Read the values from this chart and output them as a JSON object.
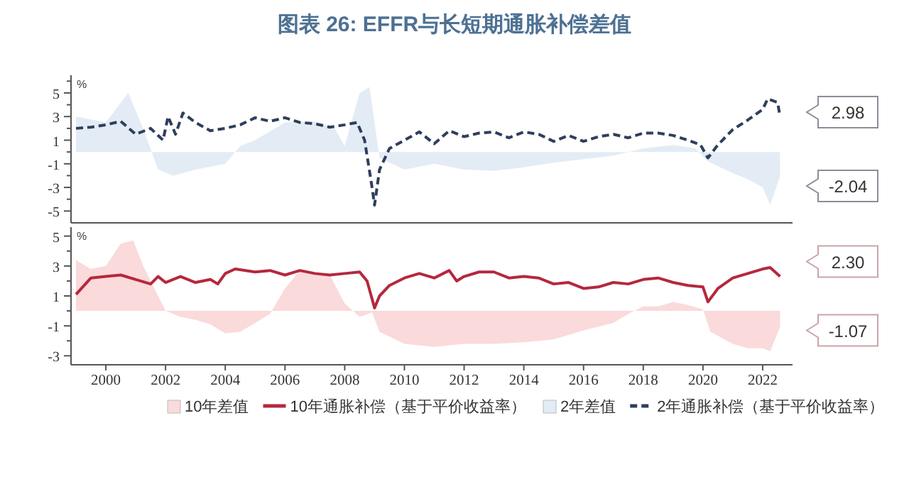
{
  "chart_data": [
    {
      "type": "line",
      "title": "图表 26: EFFR与长短期通胀补偿差值",
      "ylabel": "%",
      "tick_labels": "y",
      "legend": "bottom",
      "grid": false,
      "xlim": [
        "1998-11",
        "2023-01"
      ],
      "ylim": [
        -6,
        6.5
      ],
      "yticks": [
        -5,
        {
          "value": -4,
          "label": null
        },
        -3,
        {
          "value": -2,
          "label": null
        },
        -1,
        {
          "value": 0,
          "label": null
        },
        1,
        {
          "value": 2,
          "label": null
        },
        3,
        {
          "value": 4,
          "label": null
        },
        5,
        {
          "value": 6,
          "label": null
        }
      ],
      "series": [
        {
          "name": "2年差值",
          "type": "area",
          "color": "#e3ecf5",
          "x": [
            "1999-01",
            "2000-01",
            "2000-10",
            "2001-04",
            "2001-10",
            "2002-04",
            "2003-01",
            "2004-01",
            "2004-07",
            "2005-01",
            "2006-01",
            "2007-01",
            "2007-09",
            "2008-01",
            "2008-07",
            "2008-11",
            "2009-03",
            "2010-01",
            "2011-01",
            "2012-01",
            "2013-01",
            "2014-01",
            "2015-01",
            "2016-01",
            "2017-01",
            "2018-01",
            "2019-01",
            "2019-10",
            "2020-03",
            "2021-01",
            "2021-07",
            "2022-01",
            "2022-04",
            "2022-08"
          ],
          "values": [
            3,
            2.5,
            5,
            2,
            -1.5,
            -2,
            -1.5,
            -1,
            0.5,
            1,
            2.5,
            2.6,
            2,
            0.5,
            5,
            5.5,
            -0.5,
            -1.5,
            -1,
            -1.5,
            -1.6,
            -1.3,
            -0.9,
            -0.6,
            -0.3,
            0.3,
            0.6,
            0.3,
            -0.8,
            -1.8,
            -2.3,
            -3,
            -4.5,
            -2.04
          ]
        },
        {
          "name": "2年通胀补偿（基于平价收益率）",
          "line_style": "dashed",
          "color": "#2e3f5c",
          "x": [
            "1999-01",
            "1999-07",
            "2000-01",
            "2000-07",
            "2001-01",
            "2001-07",
            "2001-12",
            "2002-02",
            "2002-05",
            "2002-08",
            "2003-01",
            "2003-07",
            "2004-01",
            "2004-07",
            "2005-01",
            "2005-07",
            "2006-01",
            "2006-07",
            "2007-01",
            "2007-07",
            "2008-01",
            "2008-06",
            "2008-09",
            "2008-12",
            "2009-01",
            "2009-03",
            "2009-07",
            "2010-01",
            "2010-07",
            "2011-01",
            "2011-07",
            "2012-01",
            "2012-07",
            "2013-01",
            "2013-07",
            "2014-01",
            "2014-07",
            "2015-01",
            "2015-07",
            "2016-01",
            "2016-07",
            "2017-01",
            "2017-07",
            "2018-01",
            "2018-07",
            "2019-01",
            "2019-07",
            "2019-12",
            "2020-03",
            "2020-07",
            "2021-01",
            "2021-07",
            "2022-01",
            "2022-03",
            "2022-07",
            "2022-08"
          ],
          "values": [
            2,
            2.1,
            2.3,
            2.6,
            1.5,
            2,
            1,
            3,
            1.5,
            3.3,
            2.5,
            1.8,
            2,
            2.3,
            2.9,
            2.6,
            2.9,
            2.5,
            2.4,
            2.1,
            2.3,
            2.5,
            1,
            -3,
            -4.5,
            -1.5,
            0.3,
            1,
            1.7,
            0.7,
            1.8,
            1.3,
            1.6,
            1.7,
            1.2,
            1.7,
            1.5,
            0.9,
            1.4,
            0.9,
            1.3,
            1.5,
            1.2,
            1.6,
            1.6,
            1.4,
            1,
            0.6,
            -0.5,
            0.6,
            1.9,
            2.7,
            3.6,
            4.5,
            4.2,
            2.98
          ]
        }
      ],
      "annotations": [
        "2.98",
        "-2.04"
      ]
    },
    {
      "type": "line",
      "ylabel": "%",
      "legend": "bottom",
      "grid": false,
      "xlim": [
        "1998-11",
        "2023-01"
      ],
      "xticks": [
        {
          "value": "2000-01",
          "label": "2000"
        },
        {
          "value": "2002-01",
          "label": "2002"
        },
        {
          "value": "2004-01",
          "label": "2004"
        },
        {
          "value": "2006-01",
          "label": "2006"
        },
        {
          "value": "2008-01",
          "label": "2008"
        },
        {
          "value": "2010-01",
          "label": "2010"
        },
        {
          "value": "2012-01",
          "label": "2012"
        },
        {
          "value": "2014-01",
          "label": "2014"
        },
        {
          "value": "2016-01",
          "label": "2016"
        },
        {
          "value": "2018-01",
          "label": "2018"
        },
        {
          "value": "2020-01",
          "label": "2020"
        },
        {
          "value": "2022-01",
          "label": "2022"
        }
      ],
      "ylim": [
        -3.6,
        5.6
      ],
      "yticks": [
        -3,
        {
          "value": -2,
          "label": null
        },
        -1,
        {
          "value": 0,
          "label": null
        },
        1,
        {
          "value": 2,
          "label": null
        },
        3,
        {
          "value": 4,
          "label": null
        },
        5
      ],
      "series": [
        {
          "name": "10年差值",
          "type": "area",
          "color": "#fadadb",
          "x": [
            "1999-01",
            "1999-07",
            "2000-01",
            "2000-07",
            "2000-12",
            "2001-04",
            "2001-10",
            "2002-01",
            "2002-07",
            "2003-01",
            "2003-07",
            "2004-01",
            "2004-07",
            "2005-01",
            "2005-07",
            "2006-01",
            "2006-07",
            "2007-01",
            "2007-07",
            "2008-01",
            "2008-07",
            "2008-12",
            "2009-03",
            "2010-01",
            "2011-01",
            "2012-01",
            "2013-01",
            "2014-01",
            "2015-01",
            "2016-01",
            "2017-01",
            "2017-07",
            "2018-01",
            "2018-07",
            "2019-01",
            "2019-07",
            "2020-01",
            "2020-04",
            "2021-01",
            "2021-07",
            "2022-01",
            "2022-04",
            "2022-08"
          ],
          "values": [
            3.4,
            2.8,
            3,
            4.5,
            4.7,
            3,
            1,
            0,
            -0.4,
            -0.6,
            -0.9,
            -1.5,
            -1.4,
            -0.8,
            -0.2,
            1.5,
            2.7,
            2.6,
            2.4,
            0.5,
            -0.4,
            -0.1,
            -1.4,
            -2.2,
            -2.4,
            -2.2,
            -2.2,
            -2.1,
            -1.9,
            -1.3,
            -0.8,
            -0.2,
            0.3,
            0.3,
            0.6,
            0.4,
            0.1,
            -1.4,
            -2.2,
            -2.5,
            -2.5,
            -2.7,
            -1.07
          ]
        },
        {
          "name": "10年通胀补偿（基于平价收益率）",
          "line_style": "solid",
          "color": "#b5283c",
          "x": [
            "1999-01",
            "1999-07",
            "2000-01",
            "2000-07",
            "2001-01",
            "2001-07",
            "2001-10",
            "2002-01",
            "2002-07",
            "2003-01",
            "2003-07",
            "2003-10",
            "2004-01",
            "2004-05",
            "2005-01",
            "2005-07",
            "2006-01",
            "2006-07",
            "2007-01",
            "2007-07",
            "2008-01",
            "2008-07",
            "2008-10",
            "2009-01",
            "2009-03",
            "2009-07",
            "2010-01",
            "2010-07",
            "2011-01",
            "2011-07",
            "2011-10",
            "2012-01",
            "2012-07",
            "2013-01",
            "2013-07",
            "2014-01",
            "2014-07",
            "2015-01",
            "2015-07",
            "2016-01",
            "2016-07",
            "2017-01",
            "2017-07",
            "2018-01",
            "2018-07",
            "2019-01",
            "2019-07",
            "2020-01",
            "2020-03",
            "2020-07",
            "2021-01",
            "2021-07",
            "2022-01",
            "2022-04",
            "2022-08"
          ],
          "values": [
            1.1,
            2.2,
            2.3,
            2.4,
            2.1,
            1.8,
            2.3,
            1.9,
            2.3,
            1.9,
            2.1,
            1.8,
            2.5,
            2.8,
            2.6,
            2.7,
            2.4,
            2.7,
            2.5,
            2.4,
            2.5,
            2.6,
            2,
            0.2,
            1,
            1.7,
            2.2,
            2.5,
            2.2,
            2.7,
            2,
            2.3,
            2.6,
            2.6,
            2.2,
            2.3,
            2.2,
            1.8,
            1.9,
            1.5,
            1.6,
            1.9,
            1.8,
            2.1,
            2.2,
            1.9,
            1.7,
            1.6,
            0.6,
            1.5,
            2.2,
            2.5,
            2.8,
            2.9,
            2.3
          ]
        }
      ],
      "annotations": [
        "2.30",
        "-1.07"
      ]
    }
  ]
}
